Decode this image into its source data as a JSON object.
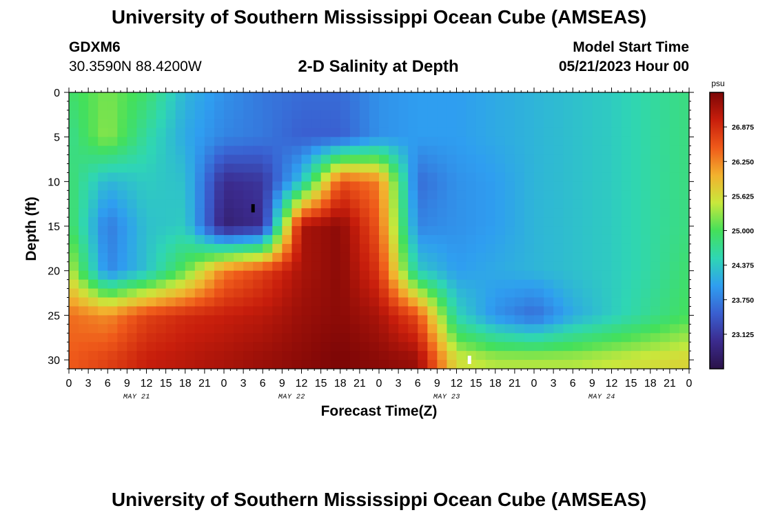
{
  "header": {
    "title": "University of Southern Mississippi Ocean Cube (AMSEAS)",
    "station": "GDXM6",
    "coords": "30.3590N  88.4200W",
    "subtitle": "2-D Salinity at Depth",
    "start_label": "Model Start Time",
    "start_value": "05/21/2023 Hour 00"
  },
  "footer": {
    "title": "University of Southern Mississippi Ocean Cube (AMSEAS)"
  },
  "chart_data": {
    "type": "heatmap",
    "title": "2-D Salinity at Depth",
    "xlabel": "Forecast Time(Z)",
    "ylabel": "Depth (ft)",
    "x_hours": [
      0,
      96
    ],
    "x_tick_labels": [
      "0",
      "3",
      "6",
      "9",
      "12",
      "15",
      "18",
      "21",
      "0",
      "3",
      "6",
      "9",
      "12",
      "15",
      "18",
      "21",
      "0",
      "3",
      "6",
      "9",
      "12",
      "15",
      "18",
      "21",
      "0",
      "3",
      "6",
      "9",
      "12",
      "15",
      "18",
      "21",
      "0"
    ],
    "day_labels": [
      "MAY 21",
      "MAY 22",
      "MAY 23",
      "MAY 24"
    ],
    "ylim": [
      0,
      31
    ],
    "y_ticks": [
      0,
      5,
      10,
      15,
      20,
      25,
      30
    ],
    "colorbar": {
      "unit": "psu",
      "range": [
        22.5,
        27.5
      ],
      "tick_values": [
        23.125,
        23.75,
        24.375,
        25.0,
        25.625,
        26.25,
        26.875
      ],
      "tick_labels": [
        "23.125",
        "23.750",
        "24.375",
        "25.000",
        "25.625",
        "26.250",
        "26.875"
      ],
      "colors": [
        "#2a1248",
        "#3b2b8e",
        "#3a5fd0",
        "#2f9ef0",
        "#2fd6b4",
        "#44e05a",
        "#c8e83c",
        "#f2b22e",
        "#ef5a1a",
        "#c81e0c",
        "#7c0606"
      ]
    },
    "salinity_grid_hours": [
      0,
      6,
      12,
      18,
      24,
      30,
      36,
      42,
      48,
      54,
      60,
      66,
      72,
      78,
      84,
      90,
      96
    ],
    "salinity_grid_depths": [
      0,
      5,
      10,
      15,
      20,
      25,
      30
    ],
    "salinity_grid": [
      [
        24.9,
        25.2,
        24.9,
        24.2,
        23.9,
        23.7,
        23.6,
        23.6,
        23.9,
        24.0,
        24.0,
        24.1,
        24.2,
        24.3,
        24.4,
        24.6,
        24.8
      ],
      [
        24.7,
        25.3,
        24.6,
        24.1,
        23.8,
        23.7,
        23.5,
        23.5,
        23.9,
        24.0,
        24.0,
        24.1,
        24.2,
        24.3,
        24.4,
        24.6,
        24.8
      ],
      [
        24.9,
        24.2,
        24.4,
        24.3,
        23.0,
        23.1,
        24.3,
        26.6,
        26.3,
        23.6,
        23.9,
        24.0,
        24.2,
        24.3,
        24.4,
        24.6,
        24.8
      ],
      [
        25.0,
        23.7,
        24.3,
        24.4,
        22.8,
        23.0,
        27.2,
        27.4,
        26.5,
        23.8,
        23.9,
        24.0,
        24.2,
        24.3,
        24.4,
        24.6,
        24.8
      ],
      [
        25.5,
        23.8,
        24.3,
        25.1,
        26.3,
        26.7,
        27.2,
        27.4,
        26.8,
        24.4,
        24.0,
        24.1,
        24.2,
        24.3,
        24.4,
        24.6,
        24.9
      ],
      [
        26.4,
        26.2,
        26.7,
        26.9,
        27.0,
        27.1,
        27.3,
        27.4,
        27.2,
        26.6,
        24.5,
        23.9,
        23.6,
        24.1,
        24.4,
        24.7,
        25.0
      ],
      [
        26.5,
        26.7,
        27.0,
        27.1,
        27.2,
        27.3,
        27.4,
        27.5,
        27.4,
        27.3,
        25.6,
        25.4,
        25.4,
        25.4,
        25.5,
        25.6,
        25.7
      ]
    ],
    "markers": [
      {
        "hour": 28.5,
        "depth": 13,
        "color": "#000000"
      },
      {
        "hour": 62,
        "depth": 30,
        "color": "#ffffff"
      }
    ]
  }
}
